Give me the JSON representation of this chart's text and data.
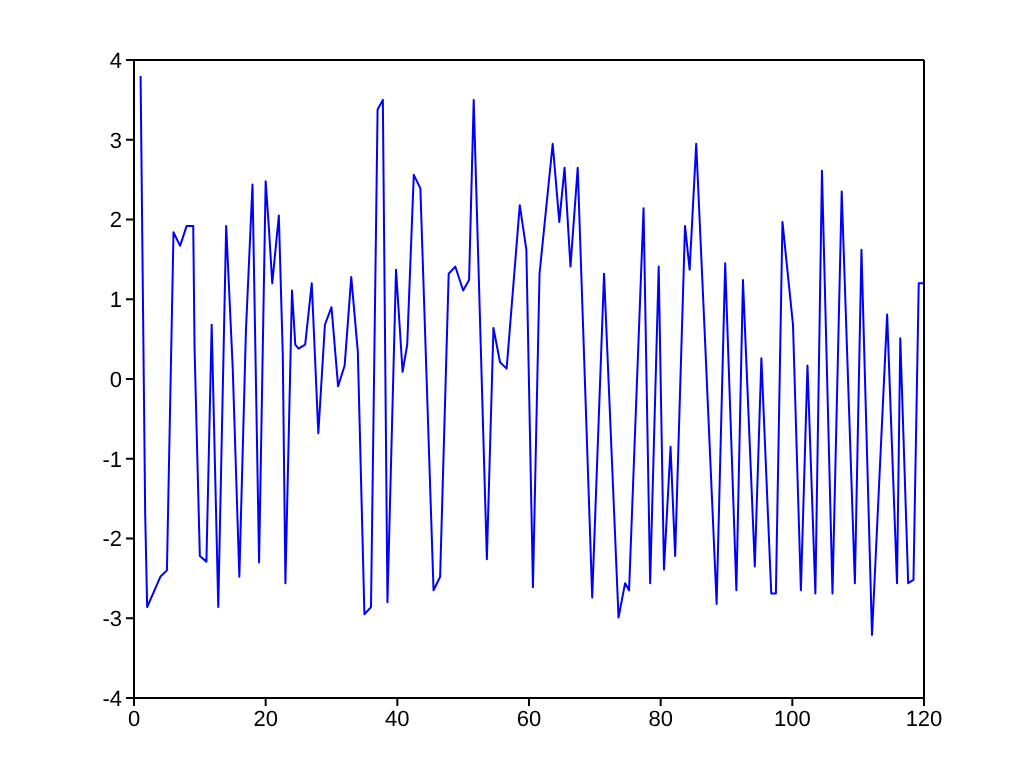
{
  "chart_data": {
    "type": "line",
    "xlim": [
      0,
      120
    ],
    "xticks": [
      0,
      20,
      40,
      60,
      80,
      100,
      120
    ],
    "ylim": [
      -4,
      4
    ],
    "yticks": [
      -4,
      -3,
      -2,
      -1,
      0,
      1,
      2,
      3,
      4
    ],
    "grid": false,
    "legend": false,
    "marker": "none",
    "line_style": "solid",
    "series": [
      {
        "color": "#0000ff",
        "x": [
          1,
          1.7,
          2,
          4,
          5,
          6,
          7,
          8,
          9,
          9.2,
          10,
          11,
          11.8,
          12.8,
          14,
          15,
          16,
          17,
          18,
          19,
          20,
          20.5,
          21,
          22,
          22.6,
          23,
          24,
          24.5,
          25,
          26,
          27,
          28,
          29,
          30,
          31,
          32,
          33,
          34,
          35,
          36,
          37,
          37.8,
          38.5,
          39.8,
          40.8,
          41.5,
          42.5,
          43.5,
          45.5,
          46.5,
          47.8,
          48.8,
          50,
          50.9,
          51.6,
          53.6,
          54.6,
          55.6,
          56.6,
          58.6,
          59.6,
          60.6,
          61.6,
          63.6,
          64.6,
          65.4,
          66.3,
          67.4,
          69.6,
          71.4,
          73.6,
          74.6,
          75.2,
          77.4,
          78.4,
          79.7,
          80.5,
          81.5,
          82.2,
          83.7,
          84.4,
          85.4,
          86.7,
          88.5,
          89.8,
          91.5,
          92.5,
          94.3,
          95.3,
          96.8,
          97.5,
          98.5,
          100.1,
          101.3,
          102.3,
          103.5,
          104.5,
          106.1,
          107.5,
          109.5,
          110.5,
          112.1,
          114.4,
          115.9,
          116.4,
          117.6,
          118.4,
          119.2,
          120
        ],
        "values": [
          3.8,
          -1.7,
          -2.86,
          -2.48,
          -2.4,
          1.84,
          1.67,
          1.92,
          1.92,
          0.38,
          -2.22,
          -2.29,
          0.68,
          -2.86,
          1.92,
          0.13,
          -2.48,
          0.6,
          2.44,
          -2.3,
          2.48,
          1.88,
          1.2,
          2.05,
          0.3,
          -2.56,
          1.11,
          0.43,
          0.38,
          0.43,
          1.2,
          -0.68,
          0.68,
          0.9,
          -0.09,
          0.17,
          1.28,
          0.34,
          -2.95,
          -2.86,
          3.38,
          3.5,
          -2.8,
          1.37,
          0.09,
          0.43,
          2.56,
          2.39,
          -2.65,
          -2.48,
          1.32,
          1.41,
          1.11,
          1.24,
          3.5,
          -2.26,
          0.64,
          0.21,
          0.13,
          2.18,
          1.62,
          -2.61,
          1.32,
          2.95,
          1.97,
          2.65,
          1.41,
          2.65,
          -2.74,
          1.32,
          -2.99,
          -2.56,
          -2.65,
          2.14,
          -2.56,
          1.41,
          -2.39,
          -0.85,
          -2.22,
          1.92,
          1.37,
          2.95,
          0.56,
          -2.82,
          1.45,
          -2.65,
          1.24,
          -2.35,
          0.26,
          -2.69,
          -2.69,
          1.97,
          0.68,
          -2.65,
          0.17,
          -2.69,
          2.61,
          -2.69,
          2.35,
          -2.56,
          1.62,
          -3.21,
          0.81,
          -2.56,
          0.51,
          -2.56,
          -2.52,
          1.2,
          1.2
        ]
      }
    ]
  }
}
